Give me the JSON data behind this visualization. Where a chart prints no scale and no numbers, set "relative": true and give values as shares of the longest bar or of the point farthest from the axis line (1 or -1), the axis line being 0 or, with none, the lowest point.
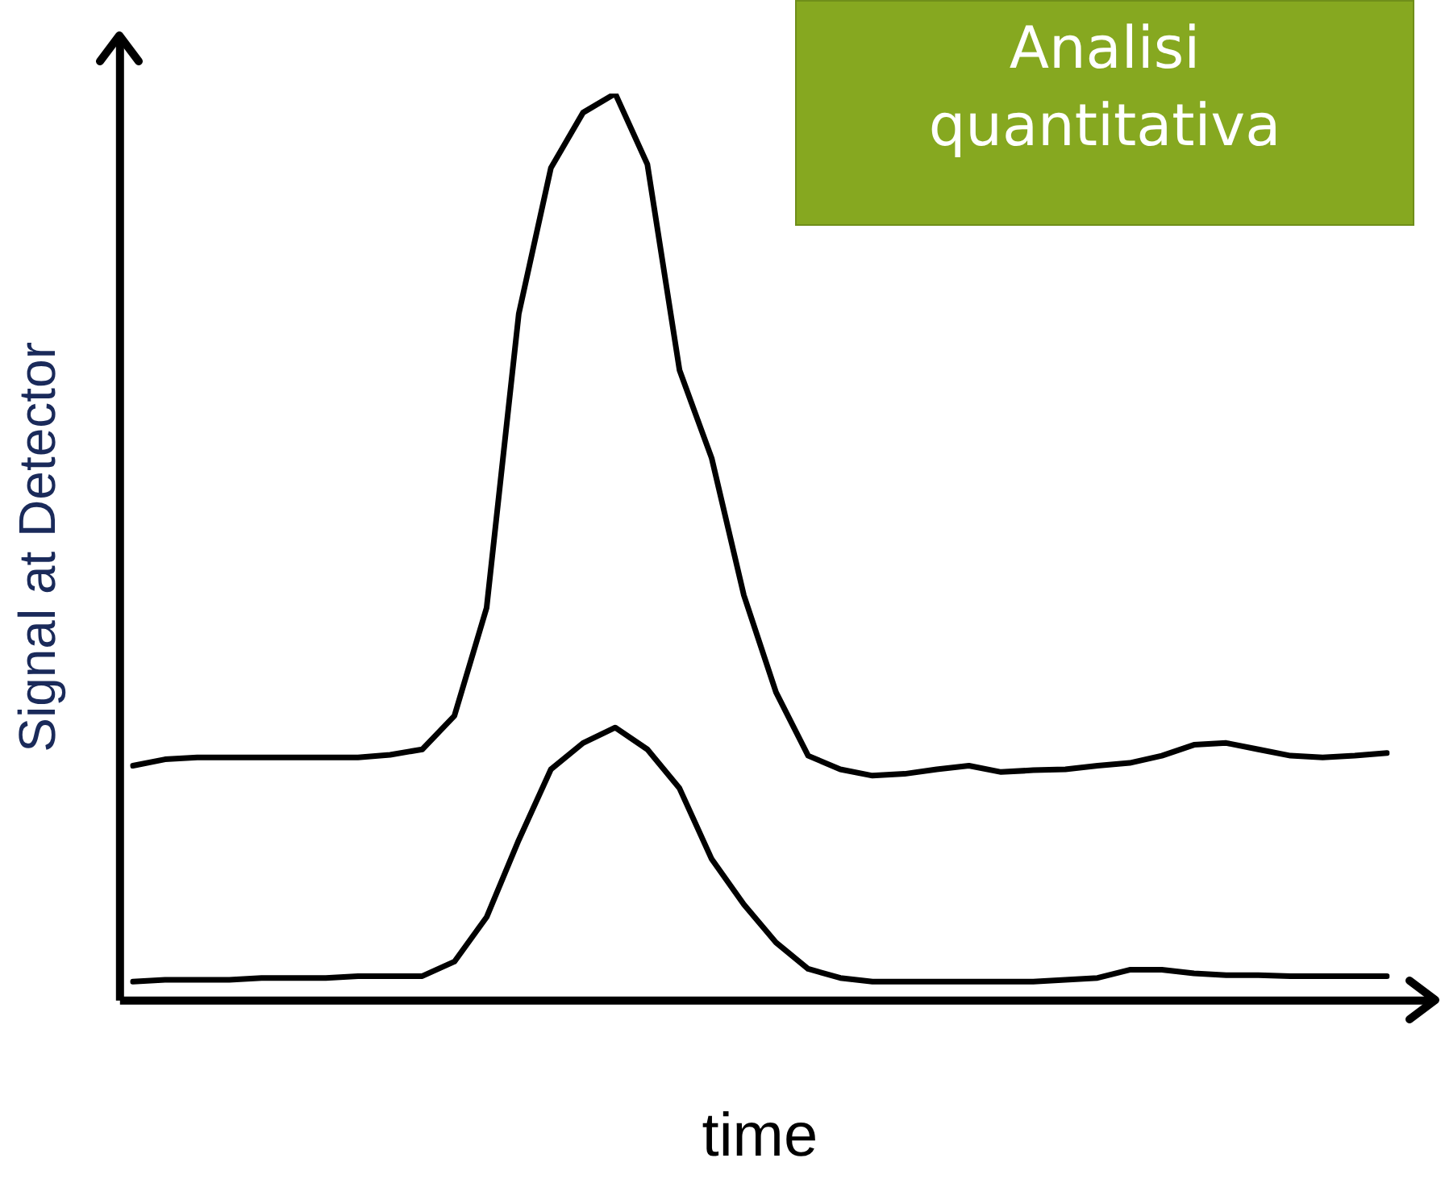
{
  "chart_data": {
    "type": "line",
    "relative": true,
    "xlabel": "time",
    "ylabel": "Signal at Detector",
    "annotations": [
      "Analisi quantitativa"
    ],
    "legend": false,
    "grid": false,
    "categories": [
      null,
      null,
      null,
      null,
      null,
      null,
      null,
      null,
      null,
      null,
      null,
      null,
      null,
      null,
      null,
      null,
      null,
      null,
      null,
      null,
      null,
      null,
      null,
      null,
      null,
      null,
      null,
      null,
      null,
      null,
      null,
      null,
      null,
      null,
      null,
      null,
      null,
      null,
      null,
      null
    ],
    "series": [
      {
        "color": "#000000",
        "values": [
          0.259,
          0.266,
          0.268,
          0.268,
          0.268,
          0.268,
          0.268,
          0.268,
          0.271,
          0.277,
          0.314,
          0.433,
          0.757,
          0.918,
          0.979,
          1,
          0.922,
          0.695,
          0.598,
          0.447,
          0.34,
          0.27,
          0.255,
          0.248,
          0.25,
          0.255,
          0.259,
          0.252,
          0.254,
          0.255,
          0.259,
          0.262,
          0.27,
          0.282,
          0.284,
          0.277,
          0.27,
          0.268,
          0.27,
          0.273
        ]
      },
      {
        "color": "#000000",
        "values": [
          0.021,
          0.023,
          0.023,
          0.023,
          0.025,
          0.025,
          0.025,
          0.027,
          0.027,
          0.027,
          0.043,
          0.092,
          0.177,
          0.255,
          0.284,
          0.301,
          0.277,
          0.234,
          0.156,
          0.106,
          0.064,
          0.035,
          0.025,
          0.021,
          0.021,
          0.021,
          0.021,
          0.021,
          0.021,
          0.023,
          0.025,
          0.034,
          0.034,
          0.03,
          0.028,
          0.028,
          0.027,
          0.027,
          0.027,
          0.027
        ]
      }
    ]
  }
}
